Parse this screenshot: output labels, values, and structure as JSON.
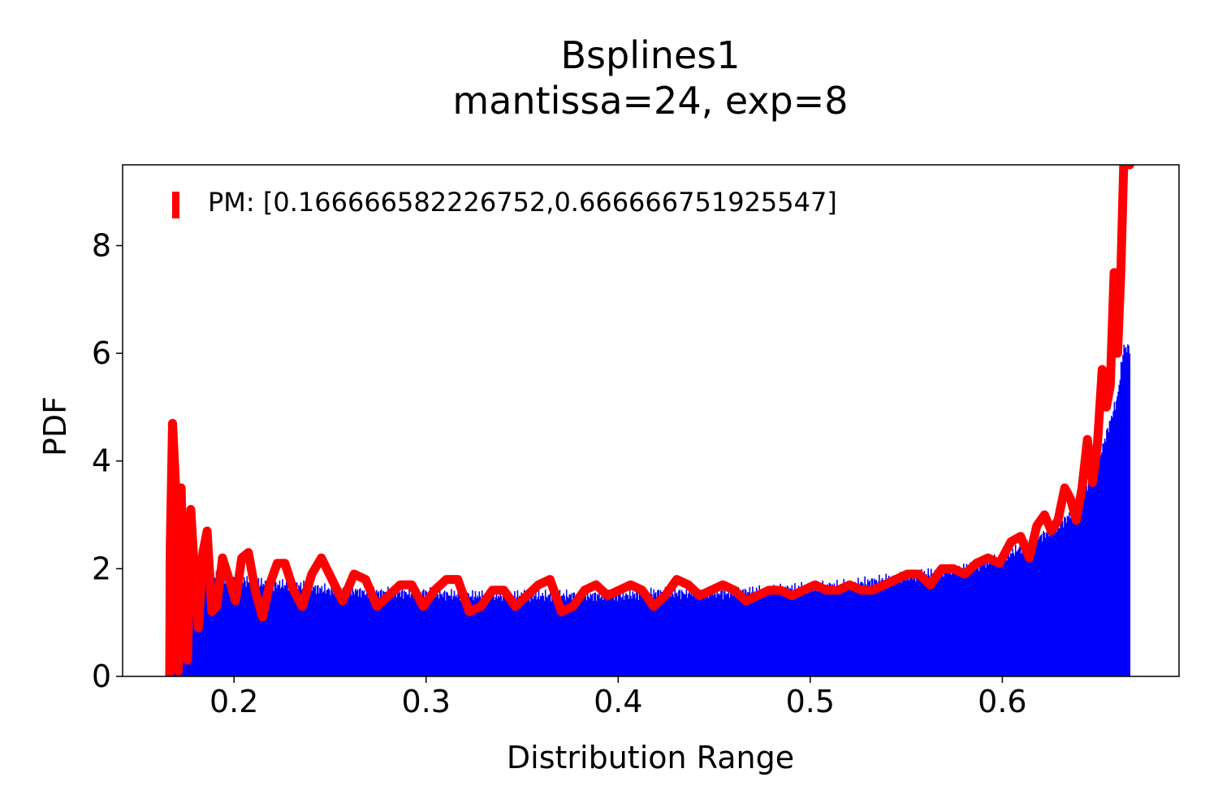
{
  "chart_data": {
    "type": "histogram_with_density_curve",
    "title": "Bsplines1",
    "subtitle": "mantissa=24, exp=8",
    "xlabel": "Distribution Range",
    "ylabel": "PDF",
    "xlim": [
      0.142,
      0.692
    ],
    "ylim": [
      0,
      9.5
    ],
    "xticks": [
      0.2,
      0.3,
      0.4,
      0.5,
      0.6
    ],
    "xtick_labels": [
      "0.2",
      "0.3",
      "0.4",
      "0.5",
      "0.6"
    ],
    "yticks": [
      0,
      2,
      4,
      6,
      8
    ],
    "ytick_labels": [
      "0",
      "2",
      "4",
      "6",
      "8"
    ],
    "legend": {
      "position": "upper-left",
      "label": "PM: [0.166666582226752,0.666666751925547]",
      "color": "#ff0000"
    },
    "colors": {
      "histogram": "#0000ff",
      "curve": "#ff0000"
    },
    "grid": false,
    "histogram": {
      "x": [
        0.167,
        0.17,
        0.175,
        0.18,
        0.185,
        0.19,
        0.2,
        0.21,
        0.22,
        0.23,
        0.24,
        0.25,
        0.26,
        0.27,
        0.28,
        0.3,
        0.32,
        0.34,
        0.36,
        0.38,
        0.4,
        0.42,
        0.44,
        0.46,
        0.48,
        0.5,
        0.52,
        0.54,
        0.56,
        0.58,
        0.6,
        0.61,
        0.62,
        0.63,
        0.64,
        0.645,
        0.65,
        0.655,
        0.66,
        0.663,
        0.6665
      ],
      "y": [
        0.1,
        0.3,
        1.4,
        1.8,
        1.9,
        1.85,
        1.8,
        1.75,
        1.7,
        1.7,
        1.65,
        1.6,
        1.6,
        1.55,
        1.55,
        1.55,
        1.5,
        1.5,
        1.5,
        1.5,
        1.5,
        1.55,
        1.55,
        1.55,
        1.6,
        1.65,
        1.7,
        1.8,
        1.9,
        2.0,
        2.2,
        2.4,
        2.6,
        2.8,
        3.2,
        3.6,
        4.0,
        4.6,
        5.2,
        6.1,
        6.1
      ]
    },
    "curve": {
      "x": [
        0.1665,
        0.1668,
        0.168,
        0.1695,
        0.171,
        0.1725,
        0.174,
        0.1758,
        0.1775,
        0.1795,
        0.1815,
        0.1838,
        0.186,
        0.1885,
        0.191,
        0.194,
        0.1975,
        0.2008,
        0.204,
        0.2075,
        0.211,
        0.2148,
        0.2185,
        0.2225,
        0.2265,
        0.231,
        0.2355,
        0.2405,
        0.2455,
        0.251,
        0.2565,
        0.2625,
        0.2685,
        0.2745,
        0.2805,
        0.2865,
        0.2925,
        0.2985,
        0.3045,
        0.3105,
        0.3165,
        0.3225,
        0.3285,
        0.3345,
        0.3405,
        0.3465,
        0.3525,
        0.3585,
        0.3645,
        0.3705,
        0.3765,
        0.3825,
        0.3885,
        0.3945,
        0.4005,
        0.4065,
        0.4125,
        0.4185,
        0.4245,
        0.4305,
        0.4365,
        0.4425,
        0.4485,
        0.4545,
        0.4605,
        0.4665,
        0.4725,
        0.4785,
        0.4845,
        0.4905,
        0.4965,
        0.5025,
        0.5085,
        0.5145,
        0.5205,
        0.5265,
        0.5325,
        0.5385,
        0.5445,
        0.5505,
        0.5565,
        0.5625,
        0.5685,
        0.5745,
        0.5805,
        0.5865,
        0.5925,
        0.5985,
        0.6045,
        0.6095,
        0.614,
        0.618,
        0.622,
        0.6255,
        0.629,
        0.6325,
        0.6355,
        0.6385,
        0.6415,
        0.6443,
        0.647,
        0.6495,
        0.652,
        0.6542,
        0.6562,
        0.6582,
        0.66,
        0.6617,
        0.6632,
        0.6645,
        0.6656,
        0.6663,
        0.6667
      ],
      "y": [
        0.0,
        2.4,
        4.7,
        3.6,
        0.1,
        3.5,
        1.0,
        0.3,
        3.1,
        1.9,
        0.9,
        2.3,
        2.7,
        1.2,
        1.3,
        2.2,
        1.8,
        1.4,
        2.2,
        2.3,
        1.6,
        1.1,
        1.7,
        2.1,
        2.1,
        1.6,
        1.3,
        1.9,
        2.2,
        1.8,
        1.4,
        1.9,
        1.8,
        1.3,
        1.5,
        1.7,
        1.7,
        1.3,
        1.6,
        1.8,
        1.8,
        1.2,
        1.3,
        1.6,
        1.6,
        1.3,
        1.5,
        1.7,
        1.8,
        1.2,
        1.3,
        1.6,
        1.7,
        1.5,
        1.6,
        1.7,
        1.6,
        1.3,
        1.5,
        1.8,
        1.7,
        1.5,
        1.6,
        1.7,
        1.6,
        1.4,
        1.5,
        1.6,
        1.6,
        1.5,
        1.6,
        1.7,
        1.6,
        1.6,
        1.7,
        1.6,
        1.6,
        1.7,
        1.8,
        1.9,
        1.9,
        1.7,
        2.0,
        2.0,
        1.9,
        2.1,
        2.2,
        2.1,
        2.5,
        2.6,
        2.2,
        2.8,
        3.0,
        2.7,
        2.9,
        3.5,
        3.3,
        2.9,
        3.5,
        4.4,
        3.6,
        4.3,
        5.7,
        5.0,
        5.4,
        7.5,
        6.0,
        7.5,
        9.5,
        9.5,
        9.5,
        9.5
      ]
    }
  }
}
